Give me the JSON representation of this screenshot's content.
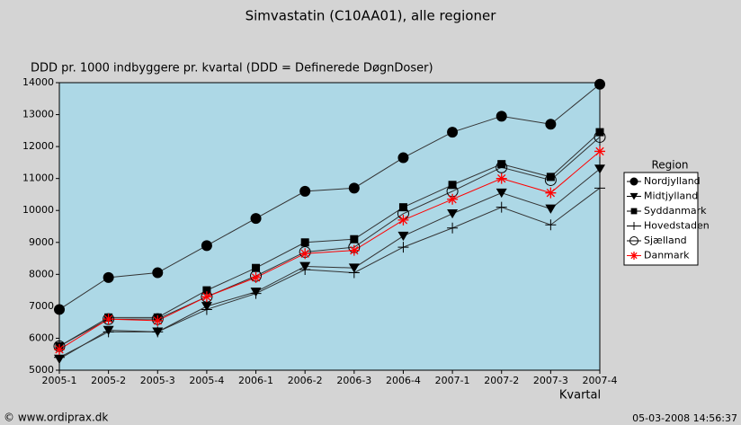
{
  "chart_data": {
    "type": "line",
    "title": "Simvastatin (C10AA01), alle regioner",
    "y_label": "DDD pr. 1000 indbyggere pr. kvartal (DDD = Definerede DøgnDoser)",
    "x_label": "Kvartal",
    "legend_title": "Region",
    "legend": "right",
    "source": "© www.ordiprax.dk",
    "timestamp": "05-03-2008 14:56:37",
    "plot_background": "#add8e6",
    "categories": [
      "2005-1",
      "2005-2",
      "2005-3",
      "2005-4",
      "2006-1",
      "2006-2",
      "2006-3",
      "2006-4",
      "2007-1",
      "2007-2",
      "2007-3",
      "2007-4"
    ],
    "ylim": [
      5000,
      14000
    ],
    "yticks": [
      5000,
      6000,
      7000,
      8000,
      9000,
      10000,
      11000,
      12000,
      13000,
      14000
    ],
    "series": [
      {
        "name": "Nordjylland",
        "color": "#000000",
        "marker": "filled-circle",
        "values": [
          6900,
          7900,
          8050,
          8900,
          9750,
          10600,
          10700,
          11650,
          12450,
          12950,
          12700,
          13950
        ]
      },
      {
        "name": "Midtjylland",
        "color": "#000000",
        "marker": "triangle-down",
        "values": [
          5350,
          6250,
          6200,
          7000,
          7450,
          8250,
          8200,
          9200,
          9900,
          10550,
          10050,
          11300
        ]
      },
      {
        "name": "Syddanmark",
        "color": "#000000",
        "marker": "square",
        "values": [
          5750,
          6650,
          6650,
          7500,
          8200,
          9000,
          9100,
          10100,
          10800,
          11450,
          11050,
          12450
        ]
      },
      {
        "name": "Hovedstaden",
        "color": "#000000",
        "marker": "plus",
        "values": [
          5400,
          6200,
          6200,
          6900,
          7400,
          8150,
          8050,
          8850,
          9450,
          10100,
          9550,
          10700
        ]
      },
      {
        "name": "Sjælland",
        "color": "#000000",
        "marker": "open-circle",
        "values": [
          5750,
          6600,
          6600,
          7300,
          7950,
          8700,
          8850,
          9900,
          10600,
          11350,
          10950,
          12300
        ]
      },
      {
        "name": "Danmark",
        "color": "#ff0000",
        "marker": "asterisk",
        "values": [
          5650,
          6600,
          6550,
          7300,
          7900,
          8650,
          8750,
          9700,
          10350,
          11000,
          10550,
          11850
        ]
      }
    ]
  }
}
